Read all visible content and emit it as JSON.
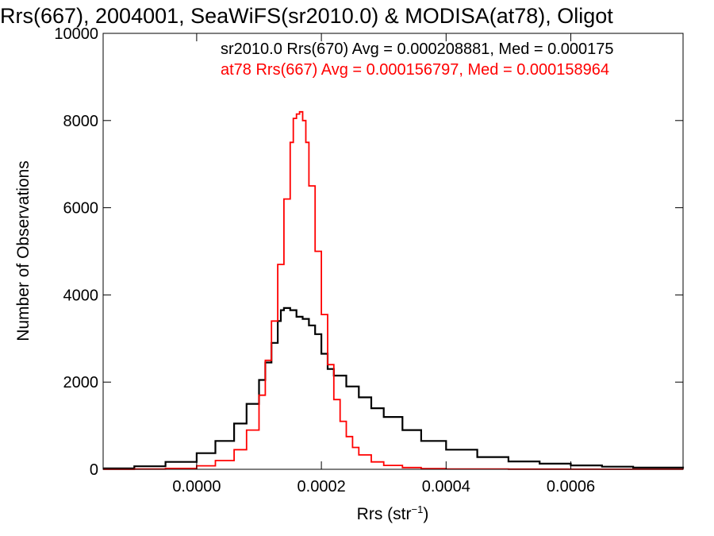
{
  "chart_data": {
    "type": "line",
    "title": "Rrs(667), 2004001, SeaWiFS(sr2010.0) & MODISA(at78), Oligot",
    "xlabel": "Rrs (str",
    "xlabel_sup": "−1",
    "xlabel_close": ")",
    "ylabel": "Number of Observations",
    "xlim": [
      -0.00015,
      0.00078
    ],
    "ylim": [
      0,
      10000
    ],
    "x_ticks": [
      0.0,
      0.0002,
      0.0004,
      0.0006
    ],
    "x_tick_labels": [
      "0.0000",
      "0.0002",
      "0.0004",
      "0.0006"
    ],
    "y_ticks": [
      0,
      2000,
      4000,
      6000,
      8000,
      10000
    ],
    "y_tick_labels": [
      "0",
      "2000",
      "4000",
      "6000",
      "8000",
      "10000"
    ],
    "grid": false,
    "legend_position": "top-right",
    "annotations": [
      {
        "text": "sr2010.0 Rrs(670) Avg = 0.000208881, Med = 0.000175",
        "color": "#000000"
      },
      {
        "text": "at78 Rrs(667) Avg = 0.000156797, Med = 0.000158964",
        "color": "#ff0000"
      }
    ],
    "series": [
      {
        "color": "#000000",
        "x": [
          -0.00015,
          -0.0001,
          -5e-05,
          0.0,
          3e-05,
          6e-05,
          8e-05,
          0.0001,
          0.00011,
          0.00012,
          0.00013,
          0.000135,
          0.00014,
          0.00015,
          0.00016,
          0.00017,
          0.00018,
          0.00019,
          0.0002,
          0.00021,
          0.00022,
          0.00024,
          0.00026,
          0.00028,
          0.0003,
          0.00033,
          0.00036,
          0.0004,
          0.00045,
          0.0005,
          0.00055,
          0.0006,
          0.00065,
          0.0007,
          0.00078
        ],
        "y": [
          20,
          70,
          170,
          370,
          650,
          1050,
          1500,
          2050,
          2450,
          2900,
          3400,
          3650,
          3700,
          3650,
          3500,
          3450,
          3300,
          3100,
          2650,
          2300,
          2150,
          1900,
          1650,
          1400,
          1200,
          900,
          650,
          450,
          280,
          180,
          130,
          90,
          60,
          40,
          25
        ]
      },
      {
        "color": "#ff0000",
        "x": [
          -0.00015,
          -0.0001,
          -5e-05,
          0.0,
          3e-05,
          6e-05,
          8e-05,
          0.0001,
          0.00011,
          0.00012,
          0.00013,
          0.00014,
          0.00015,
          0.000155,
          0.00016,
          0.000165,
          0.00017,
          0.000175,
          0.00018,
          0.00019,
          0.0002,
          0.00021,
          0.00022,
          0.00023,
          0.00024,
          0.00025,
          0.00026,
          0.00028,
          0.0003,
          0.00033,
          0.00036,
          0.0004,
          0.0005,
          0.0006,
          0.00078
        ],
        "y": [
          0,
          5,
          20,
          80,
          200,
          450,
          900,
          1700,
          2500,
          3400,
          4700,
          6200,
          7500,
          8050,
          8150,
          8200,
          8000,
          7500,
          6500,
          5000,
          3550,
          2400,
          1600,
          1100,
          750,
          500,
          330,
          170,
          90,
          40,
          15,
          8,
          3,
          1,
          0
        ]
      }
    ]
  }
}
